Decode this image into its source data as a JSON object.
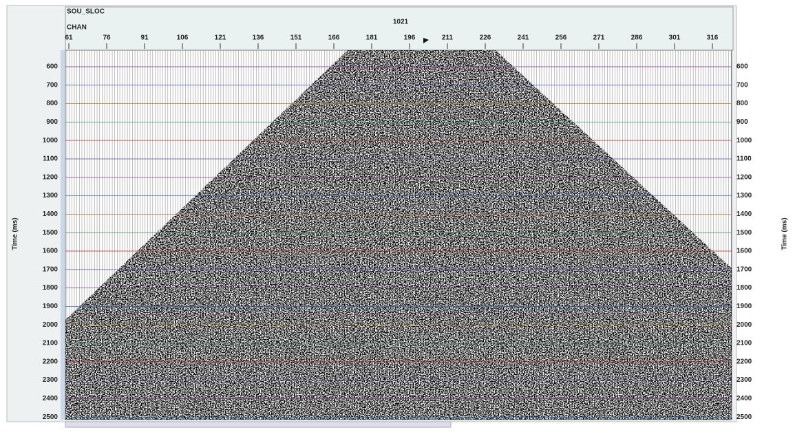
{
  "header": {
    "label": "SOU_SLOC",
    "channel_label": "CHAN",
    "source": "1021"
  },
  "axes": {
    "channels": [
      61,
      76,
      91,
      106,
      121,
      136,
      151,
      166,
      181,
      196,
      211,
      226,
      241,
      256,
      271,
      286,
      301,
      316
    ],
    "times": [
      600,
      700,
      800,
      900,
      1000,
      1100,
      1200,
      1300,
      1400,
      1500,
      1600,
      1700,
      1800,
      1900,
      2000,
      2100,
      2200,
      2300,
      2400,
      2500
    ],
    "left_title": "Time (ms)",
    "right_title": "Time (ms)"
  }
}
